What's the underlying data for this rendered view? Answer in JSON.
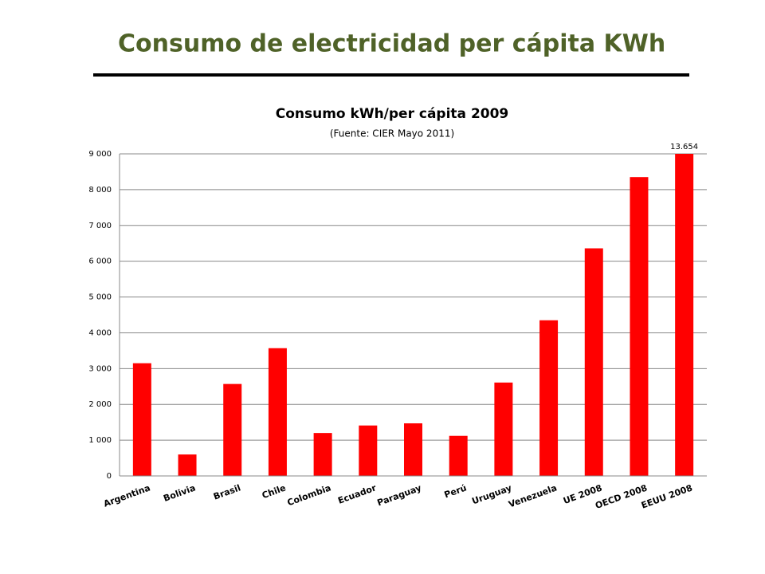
{
  "slide_title": "Consumo de electricidad per cápita KWh",
  "chart_data": {
    "type": "bar",
    "title": "Consumo kWh/per cápita 2009",
    "subtitle": "(Fuente: CIER Mayo 2011)",
    "categories": [
      "Argentina",
      "Bolivia",
      "Brasil",
      "Chile",
      "Colombia",
      "Ecuador",
      "Paraguay",
      "Perú",
      "Uruguay",
      "Venezuela",
      "UE 2008",
      "OECD 2008",
      "EEUU 2008"
    ],
    "values": [
      3150,
      600,
      2570,
      3570,
      1200,
      1410,
      1470,
      1120,
      2610,
      4350,
      6360,
      8350,
      13654
    ],
    "value_labels": [
      null,
      null,
      null,
      null,
      null,
      null,
      null,
      null,
      null,
      null,
      null,
      null,
      "13.654"
    ],
    "color": "#ff0000",
    "ylim": [
      0,
      9000
    ],
    "yticks": [
      0,
      {
        "value": 1000,
        "label": "1 000"
      },
      {
        "value": 2000,
        "label": "2 000"
      },
      {
        "value": 3000,
        "label": "3 000"
      },
      {
        "value": 4000,
        "label": "4 000"
      },
      {
        "value": 5000,
        "label": "5 000"
      },
      {
        "value": 6000,
        "label": "6 000"
      },
      {
        "value": 7000,
        "label": "7 000"
      },
      {
        "value": 8000,
        "label": "8 000"
      },
      {
        "value": 9000,
        "label": "9 000"
      }
    ],
    "grid": true
  }
}
